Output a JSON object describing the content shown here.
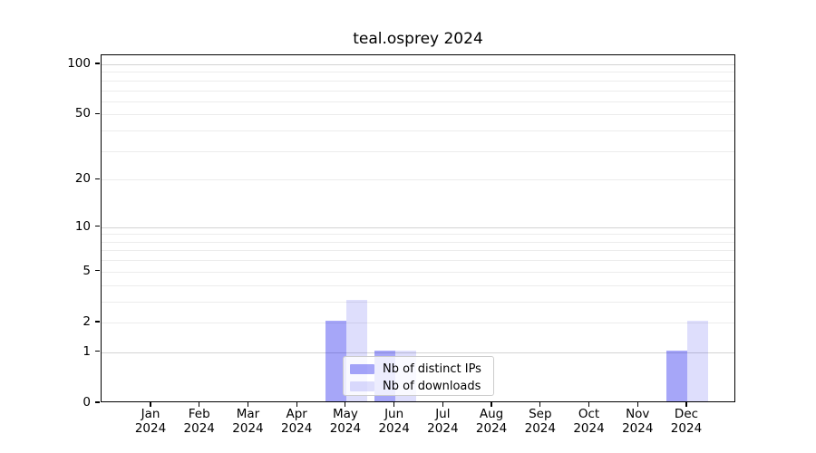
{
  "title": "teal.osprey 2024",
  "chart_data": {
    "type": "bar",
    "title": "teal.osprey 2024",
    "xlabel": "",
    "ylabel": "",
    "yscale": "log1p",
    "ylim": [
      0,
      115
    ],
    "grid": "horizontal",
    "legend_position": "inside-bottom-center",
    "categories": [
      "Jan",
      "Feb",
      "Mar",
      "Apr",
      "May",
      "Jun",
      "Jul",
      "Aug",
      "Sep",
      "Oct",
      "Nov",
      "Dec"
    ],
    "x_tick_year": "2024",
    "y_tick_values": [
      0,
      1,
      2,
      5,
      10,
      20,
      50,
      100
    ],
    "gridline_values_major": [
      1,
      10,
      100
    ],
    "gridline_values_minor": [
      2,
      3,
      4,
      5,
      6,
      7,
      8,
      9,
      20,
      30,
      40,
      50,
      60,
      70,
      80,
      90
    ],
    "series": [
      {
        "name": "Nb of distinct IPs",
        "color": "rgba(0,0,235,0.35)",
        "color_hex_on_white": "#a6a6f8",
        "values": [
          0,
          0,
          0,
          0,
          2,
          1,
          0,
          0,
          0,
          0,
          0,
          1
        ]
      },
      {
        "name": "Nb of downloads",
        "color": "rgba(0,0,235,0.13)",
        "color_hex_on_white": "#dedefc",
        "values": [
          0,
          0,
          0,
          0,
          3,
          1,
          0,
          0,
          0,
          0,
          0,
          2
        ]
      }
    ],
    "colors": {
      "grid_major": "#d4d4d4",
      "grid_minor": "#ececec",
      "axis": "#000000",
      "text": "#000000",
      "legend_border": "#cccccc",
      "legend_bg": "rgba(255,255,255,0.8)"
    }
  }
}
